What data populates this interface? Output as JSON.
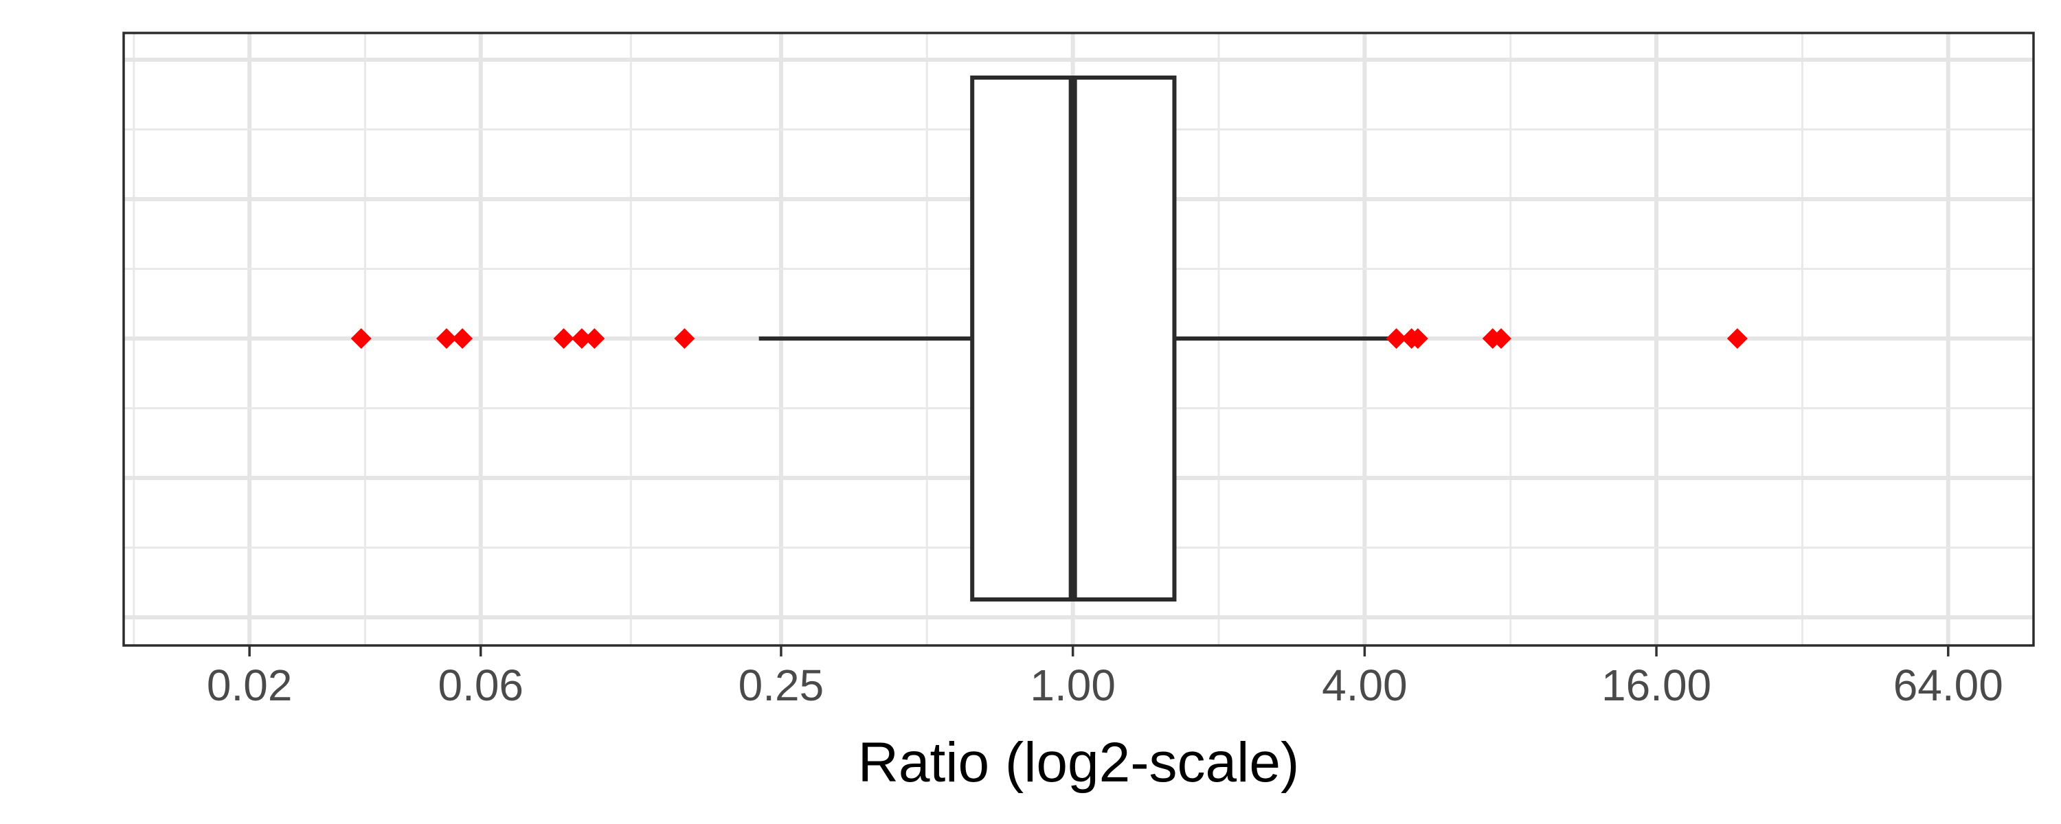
{
  "chart_data": {
    "type": "box",
    "orientation": "horizontal",
    "title": "",
    "xlabel": "Ratio (log2-scale)",
    "ylabel": "",
    "x_scale": "log2",
    "xlim": [
      0.011,
      96
    ],
    "x_ticks": [
      0.02,
      0.06,
      0.25,
      1.0,
      4.0,
      16.0,
      64.0
    ],
    "x_tick_labels": [
      "0.02",
      "0.06",
      "0.25",
      "1.00",
      "4.00",
      "16.00",
      "64.00"
    ],
    "grid": true,
    "box": {
      "q1": 0.62,
      "median": 1.0,
      "q3": 1.62,
      "whisker_low": 0.225,
      "whisker_high": 4.65
    },
    "outliers": [
      0.034,
      0.051,
      0.055,
      0.089,
      0.097,
      0.103,
      0.158,
      4.65,
      5.0,
      5.15,
      7.35,
      7.65,
      23.5
    ],
    "colors": {
      "outlier": "#ff0000",
      "box_stroke": "#2b2b2b",
      "box_fill": "#ffffff",
      "grid": "#e5e5e5"
    }
  }
}
